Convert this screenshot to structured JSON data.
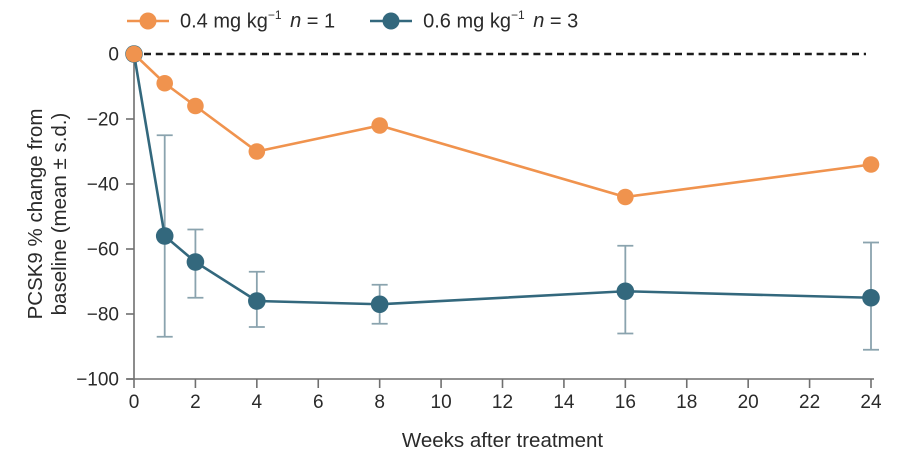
{
  "chart_data": {
    "type": "line",
    "title": "",
    "xlabel": "Weeks after treatment",
    "ylabel_lines": [
      "PCSK9 % change from",
      "baseline (mean ± s.d.)"
    ],
    "xlim": [
      0,
      24
    ],
    "ylim": [
      -100,
      0
    ],
    "grid": false,
    "legend_position": "top",
    "baseline_reference": {
      "y": 0,
      "style": "dashed",
      "color": "#1c1c1c"
    },
    "xticks": {
      "values": [
        0,
        2,
        4,
        6,
        8,
        10,
        12,
        14,
        16,
        18,
        20,
        22,
        24
      ],
      "labels": [
        "0",
        "2",
        "4",
        "6",
        "8",
        "10",
        "12",
        "14",
        "16",
        "18",
        "20",
        "22",
        "24"
      ]
    },
    "yticks": {
      "values": [
        0,
        -20,
        -40,
        -60,
        -80,
        -100
      ],
      "labels": [
        "0",
        "−20",
        "−40",
        "−60",
        "−80",
        "−100"
      ]
    },
    "series": [
      {
        "name": "0.4 mg kg−1 n = 1",
        "color": "#F0934E",
        "marker_radius": 8.3,
        "x": [
          0,
          1,
          2,
          4,
          8,
          16,
          24
        ],
        "y": [
          0,
          -9,
          -16,
          -30,
          -22,
          -44,
          -34
        ],
        "err_hi": null,
        "err_lo": null
      },
      {
        "name": "0.6 mg kg−1 n = 3",
        "color": "#33687D",
        "err_color": "#8AA3AE",
        "marker_radius": 8.8,
        "x": [
          0,
          1,
          2,
          4,
          8,
          16,
          24
        ],
        "y": [
          0,
          -56,
          -64,
          -76,
          -77,
          -73,
          -75
        ],
        "err_hi": [
          null,
          -25,
          -54,
          -67,
          -71,
          -59,
          -58
        ],
        "err_lo": [
          null,
          -87,
          -75,
          -84,
          -83,
          -86,
          -91
        ]
      }
    ]
  },
  "legend": [
    {
      "dose": "0.4 mg kg",
      "exp": "−1",
      "var": "n",
      "value": "= 1"
    },
    {
      "dose": "0.6 mg kg",
      "exp": "−1",
      "var": "n",
      "value": "= 3"
    }
  ]
}
